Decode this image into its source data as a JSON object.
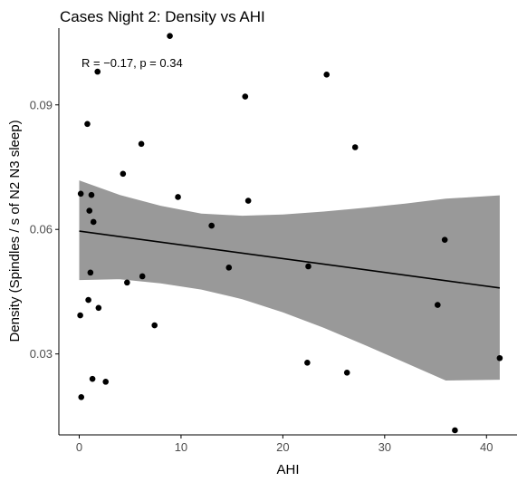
{
  "chart_data": {
    "type": "scatter",
    "title": "Cases Night 2: Density vs AHI",
    "xlabel": "AHI",
    "ylabel": "Density (Spindles / s of N2 N3 sleep)",
    "annotation": "R = −0.17, p = 0.34",
    "xlim": [
      -2,
      43
    ],
    "ylim": [
      0.0105,
      0.1085
    ],
    "x_ticks": [
      0,
      10,
      20,
      30,
      40
    ],
    "y_ticks": [
      0.03,
      0.06,
      0.09
    ],
    "y_tick_labels": [
      "0.03",
      "0.06",
      "0.09"
    ],
    "grid": false,
    "legend": "none",
    "colors": {
      "points": "#000000",
      "fit_line": "#000000",
      "confidence_band": "#999999",
      "axis": "#000000"
    },
    "series": [
      {
        "x": [
          0.1,
          0.15,
          0.2,
          0.8,
          0.9,
          1.0,
          1.1,
          1.2,
          1.3,
          1.4,
          1.8,
          1.9,
          2.6,
          4.3,
          4.7,
          6.1,
          6.2,
          7.4,
          8.9,
          9.7,
          13.0,
          14.7,
          16.3,
          16.6,
          22.4,
          22.5,
          24.3,
          26.3,
          27.1,
          35.2,
          35.9,
          36.9,
          41.3
        ],
        "y": [
          0.0393,
          0.0686,
          0.0196,
          0.0854,
          0.043,
          0.0645,
          0.0496,
          0.0683,
          0.024,
          0.0618,
          0.098,
          0.0411,
          0.0233,
          0.0734,
          0.0472,
          0.0806,
          0.0487,
          0.0369,
          0.1066,
          0.0678,
          0.0609,
          0.0508,
          0.092,
          0.0669,
          0.0279,
          0.0511,
          0.0973,
          0.0255,
          0.0798,
          0.0418,
          0.0575,
          0.0116,
          0.029
        ]
      }
    ],
    "regression": {
      "x": [
        0,
        41.3
      ],
      "y": [
        0.0596,
        0.0459
      ]
    },
    "confidence_band": {
      "x": [
        0,
        4,
        8,
        12,
        16,
        20,
        24,
        28,
        32,
        36,
        41.3
      ],
      "lower": [
        0.0478,
        0.048,
        0.047,
        0.0455,
        0.0432,
        0.04,
        0.0363,
        0.0322,
        0.0279,
        0.0236,
        0.0238
      ],
      "upper": [
        0.0718,
        0.0683,
        0.0657,
        0.0638,
        0.0633,
        0.0636,
        0.0643,
        0.0652,
        0.0662,
        0.0674,
        0.0682
      ]
    }
  }
}
